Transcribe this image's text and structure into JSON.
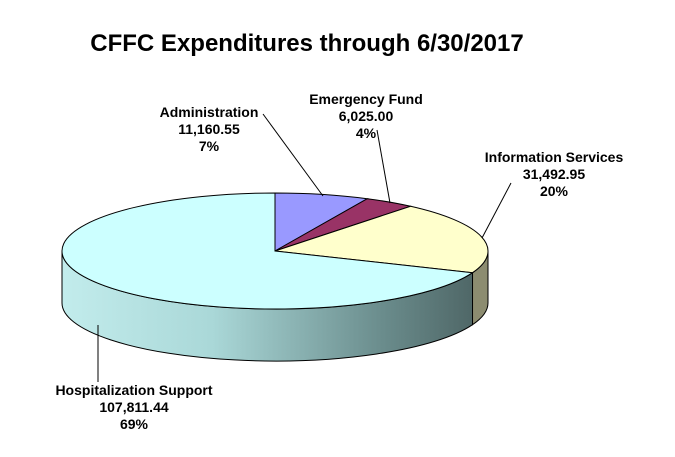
{
  "chart_data": {
    "type": "pie",
    "title": "CFFC Expenditures through 6/30/2017",
    "slices": [
      {
        "name": "Administration",
        "value": "11,160.55",
        "percent": "7%",
        "color": "#9999ff"
      },
      {
        "name": "Emergency Fund",
        "value": "6,025.00",
        "percent": "4%",
        "color": "#993366"
      },
      {
        "name": "Information Services",
        "value": "31,492.95",
        "percent": "20%",
        "color": "#ffffcc"
      },
      {
        "name": "Hospitalization Support",
        "value": "107,811.44",
        "percent": "69%",
        "color": "#ccffff"
      }
    ],
    "style": "3d-pie",
    "legend": "none"
  }
}
